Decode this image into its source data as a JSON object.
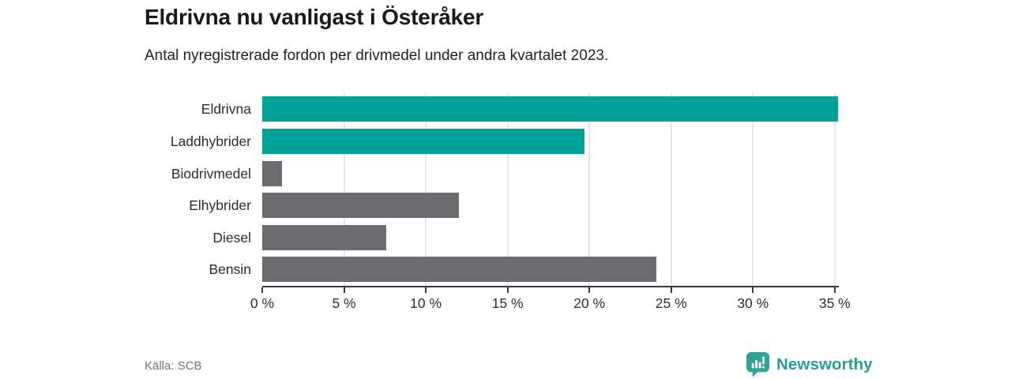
{
  "header": {
    "title": "Eldrivna nu vanligast i Österåker",
    "subtitle": "Antal nyregistrerade fordon per drivmedel under andra kvartalet 2023."
  },
  "chart_data": {
    "type": "bar",
    "orientation": "horizontal",
    "title": "Eldrivna nu vanligast i Österåker",
    "subtitle": "Antal nyregistrerade fordon per drivmedel under andra kvartalet 2023.",
    "categories": [
      "Eldrivna",
      "Laddhybrider",
      "Biodrivmedel",
      "Elhybrider",
      "Diesel",
      "Bensin"
    ],
    "values": [
      35.2,
      19.7,
      1.2,
      12.0,
      7.6,
      24.1
    ],
    "value_unit": "%",
    "xlim": [
      0,
      35.25
    ],
    "x_ticks": [
      0,
      5,
      10,
      15,
      20,
      25,
      30,
      35
    ],
    "x_tick_labels": [
      "0 %",
      "5 %",
      "10 %",
      "15 %",
      "20 %",
      "25 %",
      "30 %",
      "35 %"
    ],
    "bar_colors": [
      "#00a099",
      "#00a099",
      "#6b6b70",
      "#6b6b70",
      "#6b6b70",
      "#6b6b70"
    ],
    "highlight_color": "#00a099",
    "neutral_color": "#6b6b70",
    "grid": true,
    "gridline_color": "#e7e7e7",
    "axis_color": "#3a3a3a",
    "legend": false
  },
  "footer": {
    "source": "Källa: SCB",
    "brand": "Newsworthy",
    "brand_color": "#2a9d92"
  },
  "icons": {
    "logo": "newsworthy-chart-bubble-icon"
  }
}
